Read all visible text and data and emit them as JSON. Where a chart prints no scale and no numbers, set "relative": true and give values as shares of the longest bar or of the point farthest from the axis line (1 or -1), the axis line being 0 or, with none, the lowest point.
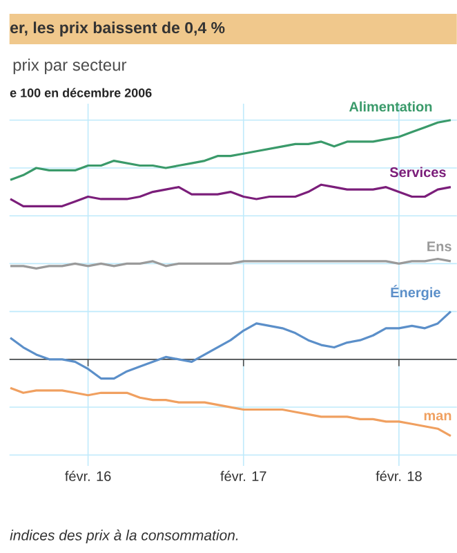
{
  "chart_data": {
    "type": "line",
    "title": "er, les prix baissent de 0,4 %",
    "subtitle": "prix par secteur",
    "ylabel": "e 100 en décembre 2006",
    "annotations": [
      "indices des prix à la consommation."
    ],
    "relative": true,
    "grid": true,
    "line_style": "solid",
    "x": [
      "2015-08",
      "2015-09",
      "2015-10",
      "2015-11",
      "2015-12",
      "2016-01",
      "2016-02",
      "2016-03",
      "2016-04",
      "2016-05",
      "2016-06",
      "2016-07",
      "2016-08",
      "2016-09",
      "2016-10",
      "2016-11",
      "2016-12",
      "2017-01",
      "2017-02",
      "2017-03",
      "2017-04",
      "2017-05",
      "2017-06",
      "2017-07",
      "2017-08",
      "2017-09",
      "2017-10",
      "2017-11",
      "2017-12",
      "2018-01",
      "2018-02",
      "2018-03",
      "2018-04",
      "2018-05",
      "2018-06"
    ],
    "xlim": [
      "2015-07-29",
      "2018-06-15"
    ],
    "xticks": [
      {
        "value": "2016-02",
        "label": "févr. 16"
      },
      {
        "value": "2017-02",
        "label": "févr. 17"
      },
      {
        "value": "2018-02",
        "label": "févr. 18"
      }
    ],
    "series": [
      {
        "name": "Alimentation",
        "color": "#3a9a6a",
        "values": [
          0.75,
          0.77,
          0.8,
          0.79,
          0.79,
          0.79,
          0.81,
          0.81,
          0.83,
          0.82,
          0.81,
          0.81,
          0.8,
          0.81,
          0.82,
          0.83,
          0.85,
          0.85,
          0.86,
          0.87,
          0.88,
          0.89,
          0.9,
          0.9,
          0.91,
          0.89,
          0.91,
          0.91,
          0.91,
          0.92,
          0.93,
          0.95,
          0.97,
          0.99,
          1.0
        ]
      },
      {
        "name": "Services",
        "color": "#7b1e7a",
        "values": [
          0.67,
          0.64,
          0.64,
          0.64,
          0.64,
          0.66,
          0.68,
          0.67,
          0.67,
          0.67,
          0.68,
          0.7,
          0.71,
          0.72,
          0.69,
          0.69,
          0.69,
          0.7,
          0.68,
          0.67,
          0.68,
          0.68,
          0.68,
          0.7,
          0.73,
          0.72,
          0.71,
          0.71,
          0.71,
          0.72,
          0.7,
          0.68,
          0.68,
          0.71,
          0.72
        ]
      },
      {
        "name": "Ens",
        "color": "#9a9a9a",
        "values": [
          0.39,
          0.39,
          0.38,
          0.39,
          0.39,
          0.4,
          0.39,
          0.4,
          0.39,
          0.4,
          0.4,
          0.41,
          0.39,
          0.4,
          0.4,
          0.4,
          0.4,
          0.4,
          0.41,
          0.41,
          0.41,
          0.41,
          0.41,
          0.41,
          0.41,
          0.41,
          0.41,
          0.41,
          0.41,
          0.41,
          0.4,
          0.41,
          0.41,
          0.42,
          0.41
        ]
      },
      {
        "name": "Énergie",
        "color": "#5b8fc9",
        "values": [
          0.09,
          0.05,
          0.02,
          0.0,
          0.0,
          -0.01,
          -0.04,
          -0.08,
          -0.08,
          -0.05,
          -0.03,
          -0.01,
          0.01,
          0.0,
          -0.01,
          0.02,
          0.05,
          0.08,
          0.12,
          0.15,
          0.14,
          0.13,
          0.11,
          0.08,
          0.06,
          0.05,
          0.07,
          0.08,
          0.1,
          0.13,
          0.13,
          0.14,
          0.13,
          0.15,
          0.2
        ]
      },
      {
        "name": "man",
        "color": "#f0a060",
        "values": [
          -0.12,
          -0.14,
          -0.13,
          -0.13,
          -0.13,
          -0.14,
          -0.15,
          -0.14,
          -0.14,
          -0.14,
          -0.16,
          -0.17,
          -0.17,
          -0.18,
          -0.18,
          -0.18,
          -0.19,
          -0.2,
          -0.21,
          -0.21,
          -0.21,
          -0.21,
          -0.22,
          -0.23,
          -0.24,
          -0.24,
          -0.24,
          -0.25,
          -0.25,
          -0.26,
          -0.26,
          -0.27,
          -0.28,
          -0.29,
          -0.32
        ]
      }
    ]
  }
}
